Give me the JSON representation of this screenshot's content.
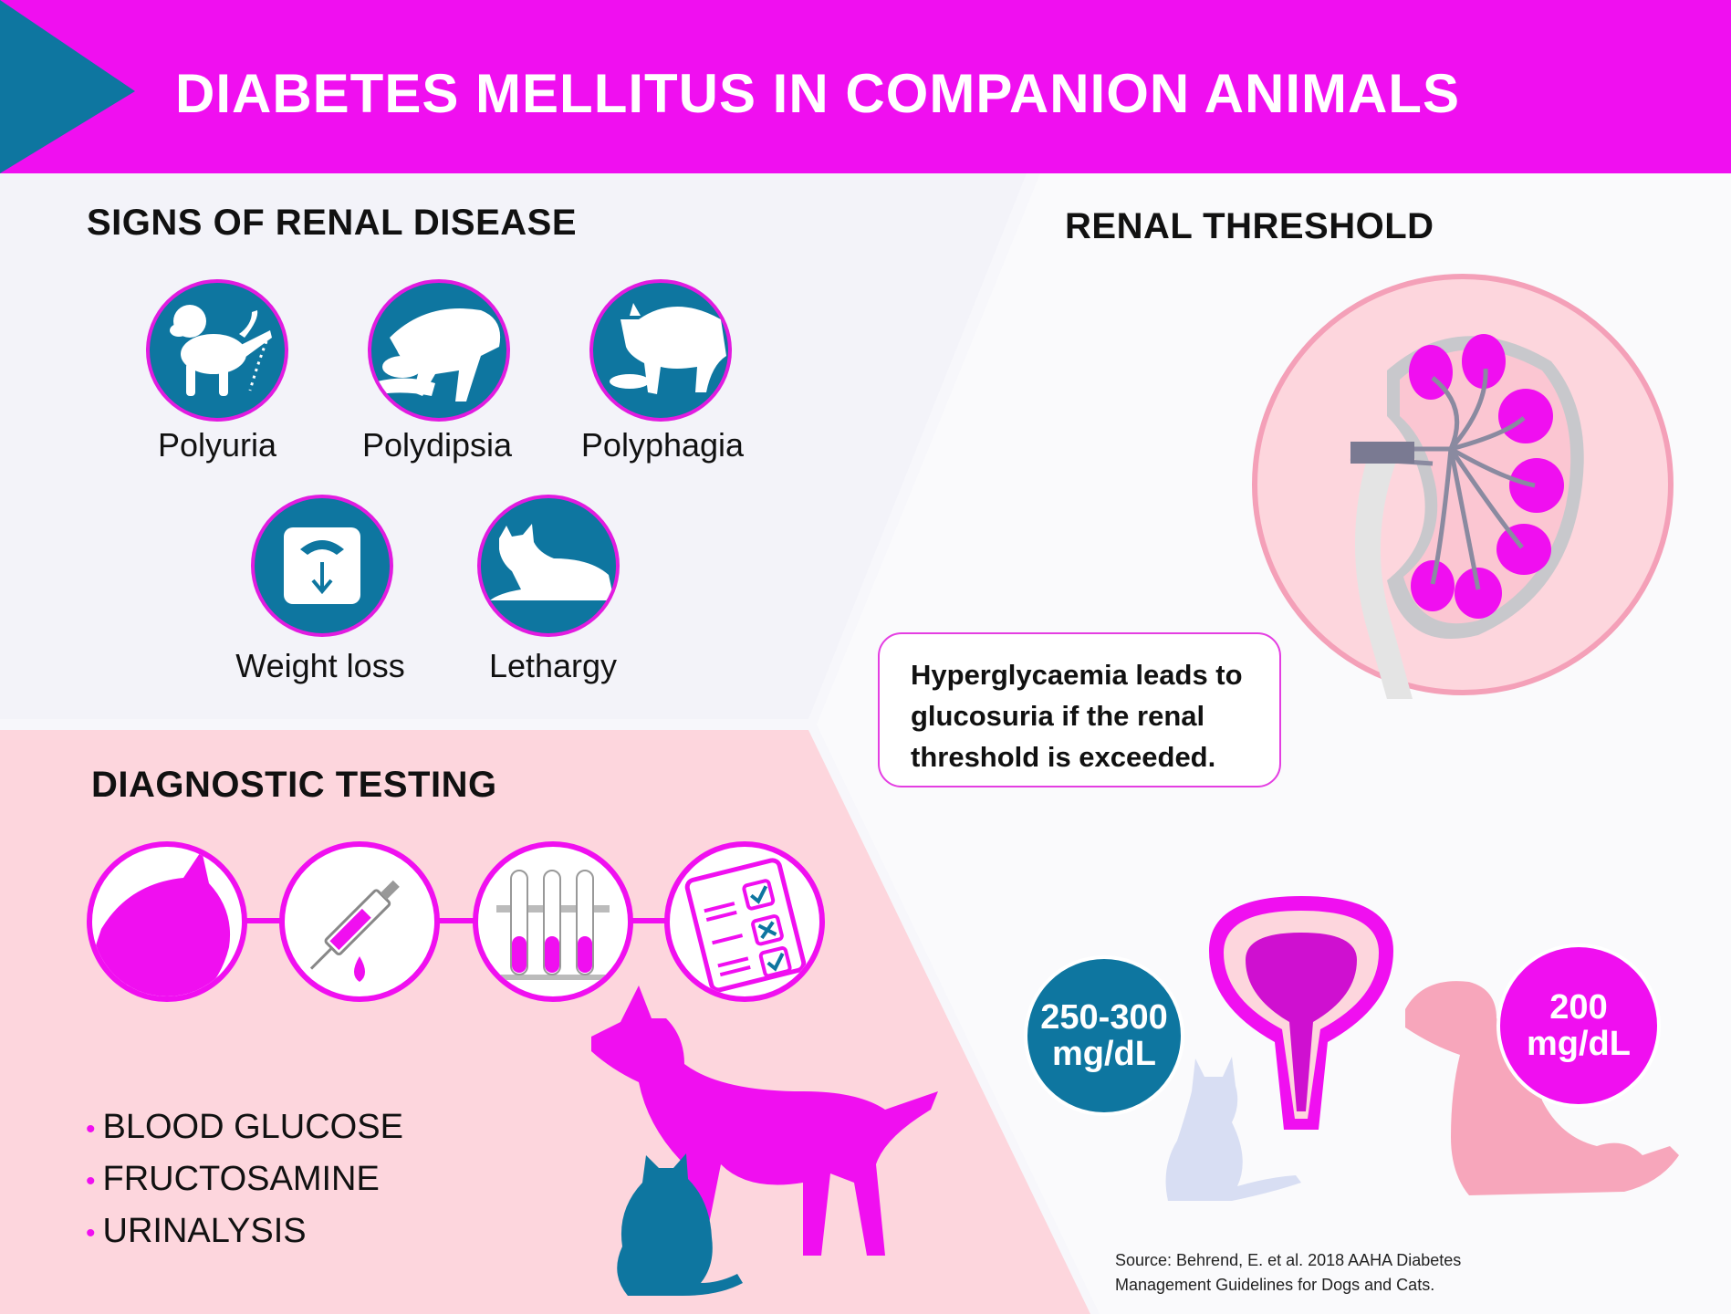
{
  "header": {
    "title": "DIABETES MELLITUS IN COMPANION ANIMALS"
  },
  "signs": {
    "title": "SIGNS OF RENAL DISEASE",
    "items": [
      {
        "label": "Polyuria",
        "icon": "dog-urinating-icon"
      },
      {
        "label": "Polydipsia",
        "icon": "dog-drinking-icon"
      },
      {
        "label": "Polyphagia",
        "icon": "dog-eating-icon"
      },
      {
        "label": "Weight loss",
        "icon": "weighing-scale-icon"
      },
      {
        "label": "Lethargy",
        "icon": "dog-lying-icon"
      }
    ]
  },
  "renal": {
    "title": "RENAL THRESHOLD",
    "callout": "Hyperglycaemia leads to glucosuria if the renal threshold is exceeded.",
    "dog_threshold": "200 mg/dL",
    "cat_threshold": "250-300 mg/dL"
  },
  "diagnostic": {
    "title": "DIAGNOSTIC TESTING",
    "tests": [
      "BLOOD GLUCOSE",
      "FRUCTOSAMINE",
      "URINALYSIS"
    ]
  },
  "source": "Source: Behrend, E. et al. 2018 AAHA Diabetes Management Guidelines for Dogs and Cats.",
  "colors": {
    "magenta": "#f00ff0",
    "teal": "#0e76a0",
    "pink_bg": "#fdd6dd",
    "light_bg": "#f3f3f9"
  }
}
